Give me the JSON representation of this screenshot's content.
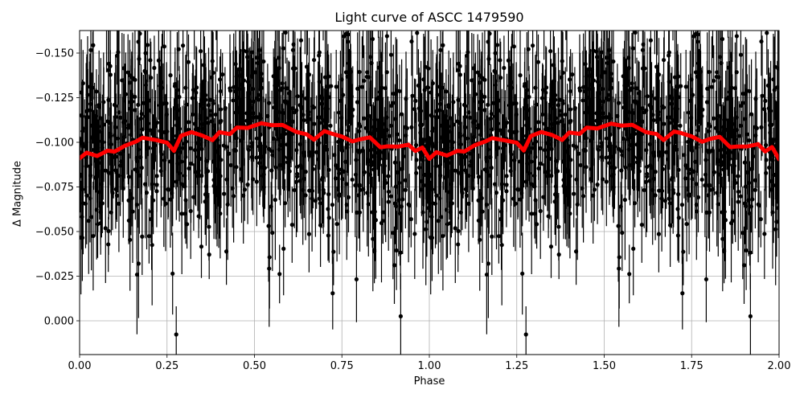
{
  "chart_data": {
    "type": "scatter",
    "title": "Light curve of ASCC 1479590",
    "xlabel": "Phase",
    "ylabel": "Δ Magnitude",
    "xlim": [
      0.0,
      2.0
    ],
    "ylim": [
      0.018,
      -0.162
    ],
    "y_inverted": true,
    "grid": true,
    "xticks": [
      "0.00",
      "0.25",
      "0.50",
      "0.75",
      "1.00",
      "1.25",
      "1.50",
      "1.75",
      "2.00"
    ],
    "yticks": [
      "−0.150",
      "−0.125",
      "−0.100",
      "−0.075",
      "−0.050",
      "−0.025",
      "0.000"
    ],
    "series": [
      {
        "name": "observations",
        "style": "black points with vertical error bars",
        "color": "#000000",
        "mean": -0.1,
        "scatter_std": 0.03,
        "typical_error": 0.02,
        "periodic_repeat": true
      },
      {
        "name": "binned curve",
        "style": "thick line",
        "color": "#ff0000",
        "x": [
          0.0,
          0.02,
          0.05,
          0.08,
          0.1,
          0.13,
          0.16,
          0.18,
          0.22,
          0.25,
          0.27,
          0.29,
          0.32,
          0.35,
          0.38,
          0.4,
          0.43,
          0.45,
          0.48,
          0.52,
          0.55,
          0.58,
          0.62,
          0.65,
          0.67,
          0.7,
          0.72,
          0.75,
          0.78,
          0.8,
          0.83,
          0.86,
          0.88,
          0.91,
          0.94,
          0.96,
          0.98,
          1.0
        ],
        "values": [
          -0.091,
          -0.094,
          -0.093,
          -0.096,
          -0.094,
          -0.098,
          -0.101,
          -0.102,
          -0.101,
          -0.099,
          -0.096,
          -0.103,
          -0.105,
          -0.104,
          -0.102,
          -0.105,
          -0.104,
          -0.109,
          -0.108,
          -0.111,
          -0.109,
          -0.109,
          -0.105,
          -0.104,
          -0.102,
          -0.106,
          -0.105,
          -0.104,
          -0.101,
          -0.101,
          -0.103,
          -0.098,
          -0.097,
          -0.097,
          -0.099,
          -0.095,
          -0.097,
          -0.091
        ]
      }
    ]
  }
}
